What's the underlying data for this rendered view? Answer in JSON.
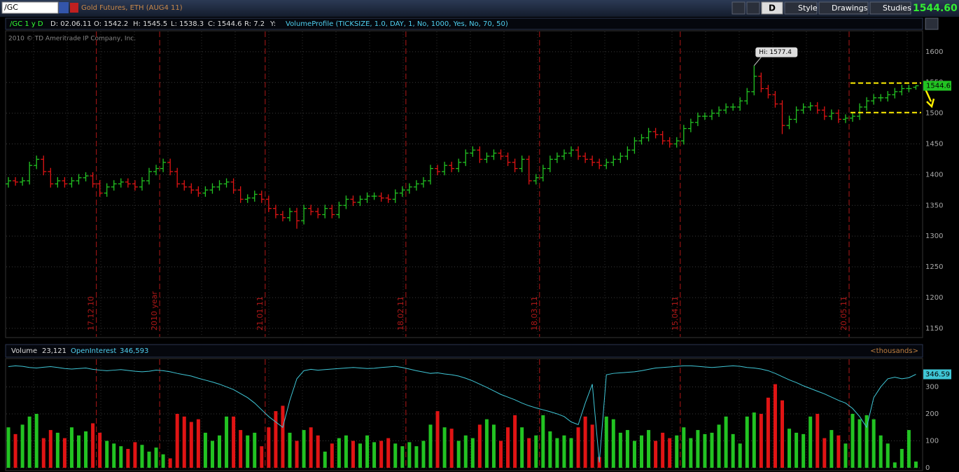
{
  "toolbar": {
    "symbol": "/GC",
    "description": "Gold Futures, ETH (AUG4 11)",
    "period_button": "D",
    "style": "Style",
    "drawings": "Drawings",
    "studies": "Studies",
    "last": "1544.60"
  },
  "header": {
    "study_id": "/GC 1 y D",
    "date": "D: 02.06.11",
    "open": "O: 1542.2",
    "high": "H: 1545.5",
    "low": "L: 1538.3",
    "close": "C: 1544.6",
    "range": "R: 7.2",
    "y": "Y:",
    "study": "VolumeProfile (TICKSIZE, 1.0, DAY, 1, No, 1000, Yes, No, 70, 50)",
    "copyright": "2010 © TD Ameritrade IP Company, Inc."
  },
  "lower_header": {
    "volume_label": "Volume",
    "volume_value": "23,121",
    "oi_label": "OpenInterest",
    "oi_value": "346,593",
    "units": "<thousands>"
  },
  "chart_data": {
    "type": "ohlc",
    "up_color": "#22c322",
    "down_color": "#e01414",
    "oi_color": "#3fc6d6",
    "level_color": "#ffee00",
    "marker_color": "#b01818",
    "annotation": "Hi: 1577.4",
    "annotation_index": 106,
    "levels": [
      1549,
      1501
    ],
    "levels_start": 120,
    "categories": [
      null,
      null,
      null,
      null,
      null,
      null,
      null,
      null,
      null,
      null,
      null,
      null,
      null,
      "17.12.10",
      null,
      null,
      null,
      null,
      null,
      null,
      null,
      null,
      "2010 year",
      null,
      null,
      null,
      null,
      null,
      null,
      null,
      null,
      null,
      null,
      null,
      null,
      null,
      null,
      "21.01.11",
      null,
      null,
      null,
      null,
      null,
      null,
      null,
      null,
      null,
      null,
      null,
      null,
      null,
      null,
      null,
      null,
      null,
      null,
      null,
      "18.02.11",
      null,
      null,
      null,
      null,
      null,
      null,
      null,
      null,
      null,
      null,
      null,
      null,
      null,
      null,
      null,
      null,
      null,
      null,
      "18.03.11",
      null,
      null,
      null,
      null,
      null,
      null,
      null,
      null,
      null,
      null,
      null,
      null,
      null,
      null,
      null,
      null,
      null,
      null,
      null,
      "15.04.11",
      null,
      null,
      null,
      null,
      null,
      null,
      null,
      null,
      null,
      null,
      null,
      null,
      null,
      null,
      null,
      null,
      null,
      null,
      null,
      null,
      null,
      null,
      null,
      "20.05.11",
      null,
      null,
      null,
      null,
      null,
      null,
      null,
      null,
      null
    ],
    "open": [
      1385,
      1390,
      1388,
      1390,
      1415,
      1425,
      1405,
      1385,
      1390,
      1385,
      1390,
      1395,
      1398,
      1385,
      1370,
      1380,
      1385,
      1388,
      1385,
      1380,
      1390,
      1405,
      1410,
      1420,
      1405,
      1385,
      1380,
      1375,
      1370,
      1375,
      1380,
      1385,
      1388,
      1375,
      1360,
      1362,
      1368,
      1360,
      1345,
      1335,
      1330,
      1340,
      1325,
      1345,
      1340,
      1335,
      1345,
      1335,
      1350,
      1360,
      1355,
      1360,
      1365,
      1365,
      1362,
      1360,
      1370,
      1375,
      1380,
      1385,
      1390,
      1410,
      1405,
      1415,
      1410,
      1420,
      1435,
      1440,
      1425,
      1430,
      1435,
      1430,
      1420,
      1410,
      1425,
      1390,
      1395,
      1410,
      1425,
      1430,
      1435,
      1440,
      1430,
      1425,
      1420,
      1415,
      1420,
      1425,
      1430,
      1440,
      1455,
      1460,
      1470,
      1465,
      1455,
      1450,
      1455,
      1475,
      1485,
      1495,
      1495,
      1500,
      1505,
      1510,
      1510,
      1520,
      1535,
      1560,
      1540,
      1530,
      1515,
      1480,
      1490,
      1505,
      1510,
      1512,
      1505,
      1495,
      1500,
      1490,
      1492,
      1495,
      1510,
      1520,
      1525,
      1525,
      1530,
      1535,
      1540,
      1542.2
    ],
    "high": [
      1396,
      1396,
      1396,
      1421,
      1431,
      1431,
      1411,
      1396,
      1396,
      1396,
      1401,
      1404,
      1404,
      1391,
      1386,
      1391,
      1394,
      1394,
      1391,
      1396,
      1411,
      1416,
      1426,
      1426,
      1411,
      1391,
      1386,
      1381,
      1381,
      1386,
      1391,
      1394,
      1394,
      1381,
      1368,
      1374,
      1374,
      1366,
      1351,
      1341,
      1346,
      1346,
      1351,
      1351,
      1346,
      1351,
      1351,
      1356,
      1366,
      1366,
      1366,
      1371,
      1371,
      1371,
      1368,
      1376,
      1381,
      1386,
      1391,
      1396,
      1416,
      1416,
      1421,
      1421,
      1426,
      1441,
      1446,
      1446,
      1436,
      1441,
      1441,
      1436,
      1426,
      1431,
      1431,
      1401,
      1416,
      1431,
      1436,
      1441,
      1446,
      1446,
      1436,
      1431,
      1426,
      1426,
      1431,
      1436,
      1446,
      1461,
      1466,
      1476,
      1476,
      1471,
      1461,
      1461,
      1481,
      1491,
      1501,
      1501,
      1506,
      1511,
      1516,
      1516,
      1526,
      1541,
      1577.4,
      1566,
      1546,
      1536,
      1521,
      1496,
      1511,
      1516,
      1518,
      1518,
      1511,
      1506,
      1506,
      1498,
      1501,
      1516,
      1526,
      1531,
      1531,
      1536,
      1541,
      1546,
      1546,
      1545.5
    ],
    "low": [
      1379,
      1382,
      1382,
      1384,
      1409,
      1399,
      1379,
      1379,
      1379,
      1379,
      1384,
      1389,
      1379,
      1364,
      1364,
      1374,
      1379,
      1379,
      1374,
      1374,
      1384,
      1399,
      1404,
      1399,
      1379,
      1374,
      1369,
      1364,
      1364,
      1369,
      1374,
      1379,
      1369,
      1354,
      1354,
      1356,
      1354,
      1339,
      1329,
      1324,
      1324,
      1312,
      1319,
      1334,
      1329,
      1329,
      1329,
      1329,
      1344,
      1349,
      1349,
      1354,
      1359,
      1356,
      1354,
      1354,
      1364,
      1369,
      1374,
      1379,
      1384,
      1399,
      1399,
      1404,
      1404,
      1414,
      1429,
      1419,
      1419,
      1424,
      1424,
      1414,
      1404,
      1404,
      1384,
      1384,
      1389,
      1404,
      1419,
      1424,
      1429,
      1424,
      1419,
      1414,
      1409,
      1409,
      1414,
      1419,
      1424,
      1434,
      1449,
      1454,
      1459,
      1449,
      1444,
      1444,
      1449,
      1469,
      1479,
      1489,
      1489,
      1494,
      1499,
      1504,
      1504,
      1514,
      1529,
      1534,
      1524,
      1509,
      1466,
      1474,
      1484,
      1499,
      1504,
      1499,
      1489,
      1489,
      1484,
      1484,
      1486,
      1489,
      1504,
      1514,
      1519,
      1519,
      1524,
      1529,
      1534,
      1538.3
    ],
    "close": [
      1390,
      1388,
      1390,
      1415,
      1425,
      1405,
      1385,
      1390,
      1385,
      1390,
      1395,
      1398,
      1385,
      1370,
      1380,
      1385,
      1388,
      1385,
      1380,
      1390,
      1405,
      1410,
      1420,
      1405,
      1385,
      1380,
      1375,
      1370,
      1375,
      1380,
      1385,
      1388,
      1375,
      1360,
      1362,
      1368,
      1360,
      1345,
      1335,
      1330,
      1340,
      1325,
      1345,
      1340,
      1335,
      1345,
      1335,
      1350,
      1360,
      1355,
      1360,
      1365,
      1365,
      1362,
      1360,
      1370,
      1375,
      1380,
      1385,
      1390,
      1410,
      1405,
      1415,
      1410,
      1420,
      1435,
      1440,
      1425,
      1430,
      1435,
      1430,
      1420,
      1410,
      1425,
      1390,
      1395,
      1410,
      1425,
      1430,
      1435,
      1440,
      1430,
      1425,
      1420,
      1415,
      1420,
      1425,
      1430,
      1440,
      1455,
      1460,
      1470,
      1465,
      1455,
      1450,
      1455,
      1475,
      1485,
      1495,
      1495,
      1500,
      1505,
      1510,
      1510,
      1520,
      1535,
      1560,
      1540,
      1530,
      1515,
      1480,
      1490,
      1505,
      1510,
      1512,
      1505,
      1495,
      1500,
      1490,
      1492,
      1495,
      1510,
      1520,
      1525,
      1525,
      1530,
      1535,
      1540,
      1540,
      1544.6
    ],
    "ylim": [
      1135,
      1634
    ],
    "yticks": [
      1150,
      1200,
      1250,
      1300,
      1350,
      1400,
      1450,
      1500,
      1550,
      1600
    ],
    "volume": [
      150,
      125,
      160,
      190,
      200,
      110,
      140,
      130,
      110,
      150,
      120,
      135,
      165,
      130,
      100,
      90,
      80,
      70,
      95,
      85,
      60,
      75,
      50,
      35,
      200,
      190,
      170,
      180,
      130,
      100,
      120,
      190,
      190,
      140,
      120,
      130,
      80,
      150,
      210,
      230,
      130,
      100,
      140,
      150,
      120,
      60,
      90,
      110,
      120,
      100,
      90,
      120,
      95,
      100,
      110,
      90,
      80,
      95,
      80,
      100,
      160,
      210,
      150,
      145,
      100,
      120,
      110,
      160,
      180,
      160,
      100,
      150,
      195,
      150,
      110,
      120,
      195,
      135,
      110,
      120,
      110,
      150,
      190,
      160,
      40,
      190,
      180,
      130,
      140,
      100,
      120,
      140,
      100,
      130,
      110,
      120,
      150,
      110,
      140,
      125,
      130,
      160,
      190,
      125,
      90,
      190,
      205,
      200,
      260,
      310,
      250,
      145,
      130,
      125,
      190,
      200,
      110,
      140,
      120,
      90,
      200,
      180,
      195,
      180,
      120,
      90,
      20,
      70,
      140,
      23.121
    ],
    "open_interest": [
      375,
      378,
      376,
      372,
      370,
      373,
      375,
      372,
      368,
      366,
      368,
      370,
      365,
      362,
      360,
      362,
      364,
      361,
      358,
      356,
      358,
      362,
      360,
      356,
      350,
      345,
      340,
      332,
      325,
      318,
      310,
      300,
      290,
      275,
      260,
      240,
      215,
      190,
      170,
      150,
      250,
      330,
      360,
      365,
      362,
      364,
      366,
      368,
      370,
      372,
      370,
      368,
      369,
      372,
      374,
      376,
      372,
      366,
      360,
      355,
      350,
      352,
      348,
      345,
      340,
      332,
      322,
      310,
      298,
      285,
      272,
      262,
      252,
      240,
      230,
      222,
      215,
      208,
      200,
      190,
      170,
      160,
      240,
      310,
      20,
      345,
      350,
      352,
      354,
      356,
      360,
      365,
      370,
      372,
      374,
      376,
      378,
      378,
      376,
      374,
      372,
      374,
      376,
      378,
      376,
      372,
      370,
      366,
      360,
      350,
      338,
      326,
      316,
      304,
      294,
      284,
      274,
      262,
      250,
      240,
      220,
      190,
      150,
      260,
      300,
      330,
      336,
      330,
      334,
      346.59
    ],
    "volume_ylim": [
      0,
      405
    ],
    "volume_yticks": [
      0,
      100,
      200,
      300
    ]
  }
}
